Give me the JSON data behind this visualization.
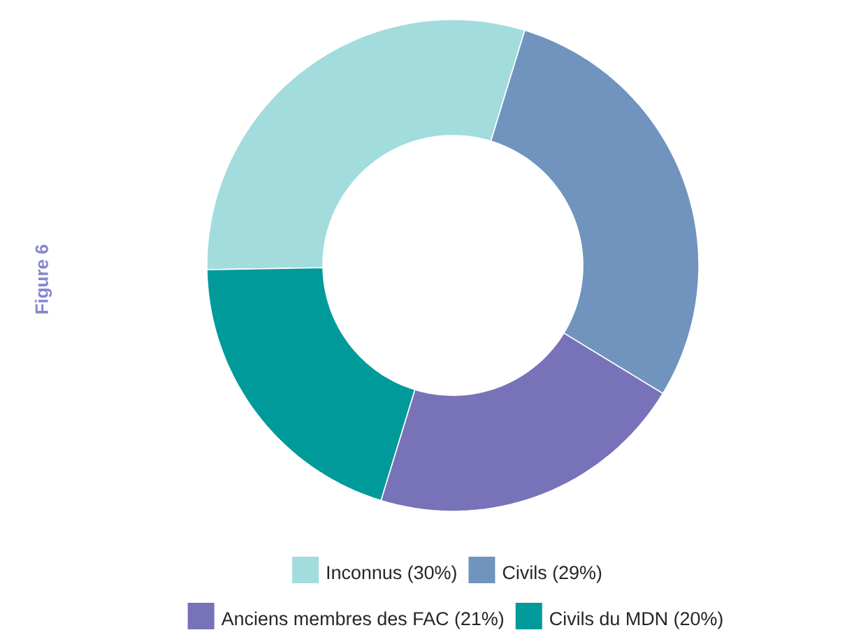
{
  "chart_data": {
    "type": "donut",
    "title": "Figure 6",
    "categories": [
      "Inconnus (30%)",
      "Civils (29%)",
      "Anciens membres des FAC (21%)",
      "Civils du MDN (20%)"
    ],
    "values": [
      30,
      29,
      21,
      20
    ],
    "colors": [
      "#a3dcdc",
      "#7094be",
      "#7872b8",
      "#009a9a"
    ],
    "legend": "bottom"
  }
}
